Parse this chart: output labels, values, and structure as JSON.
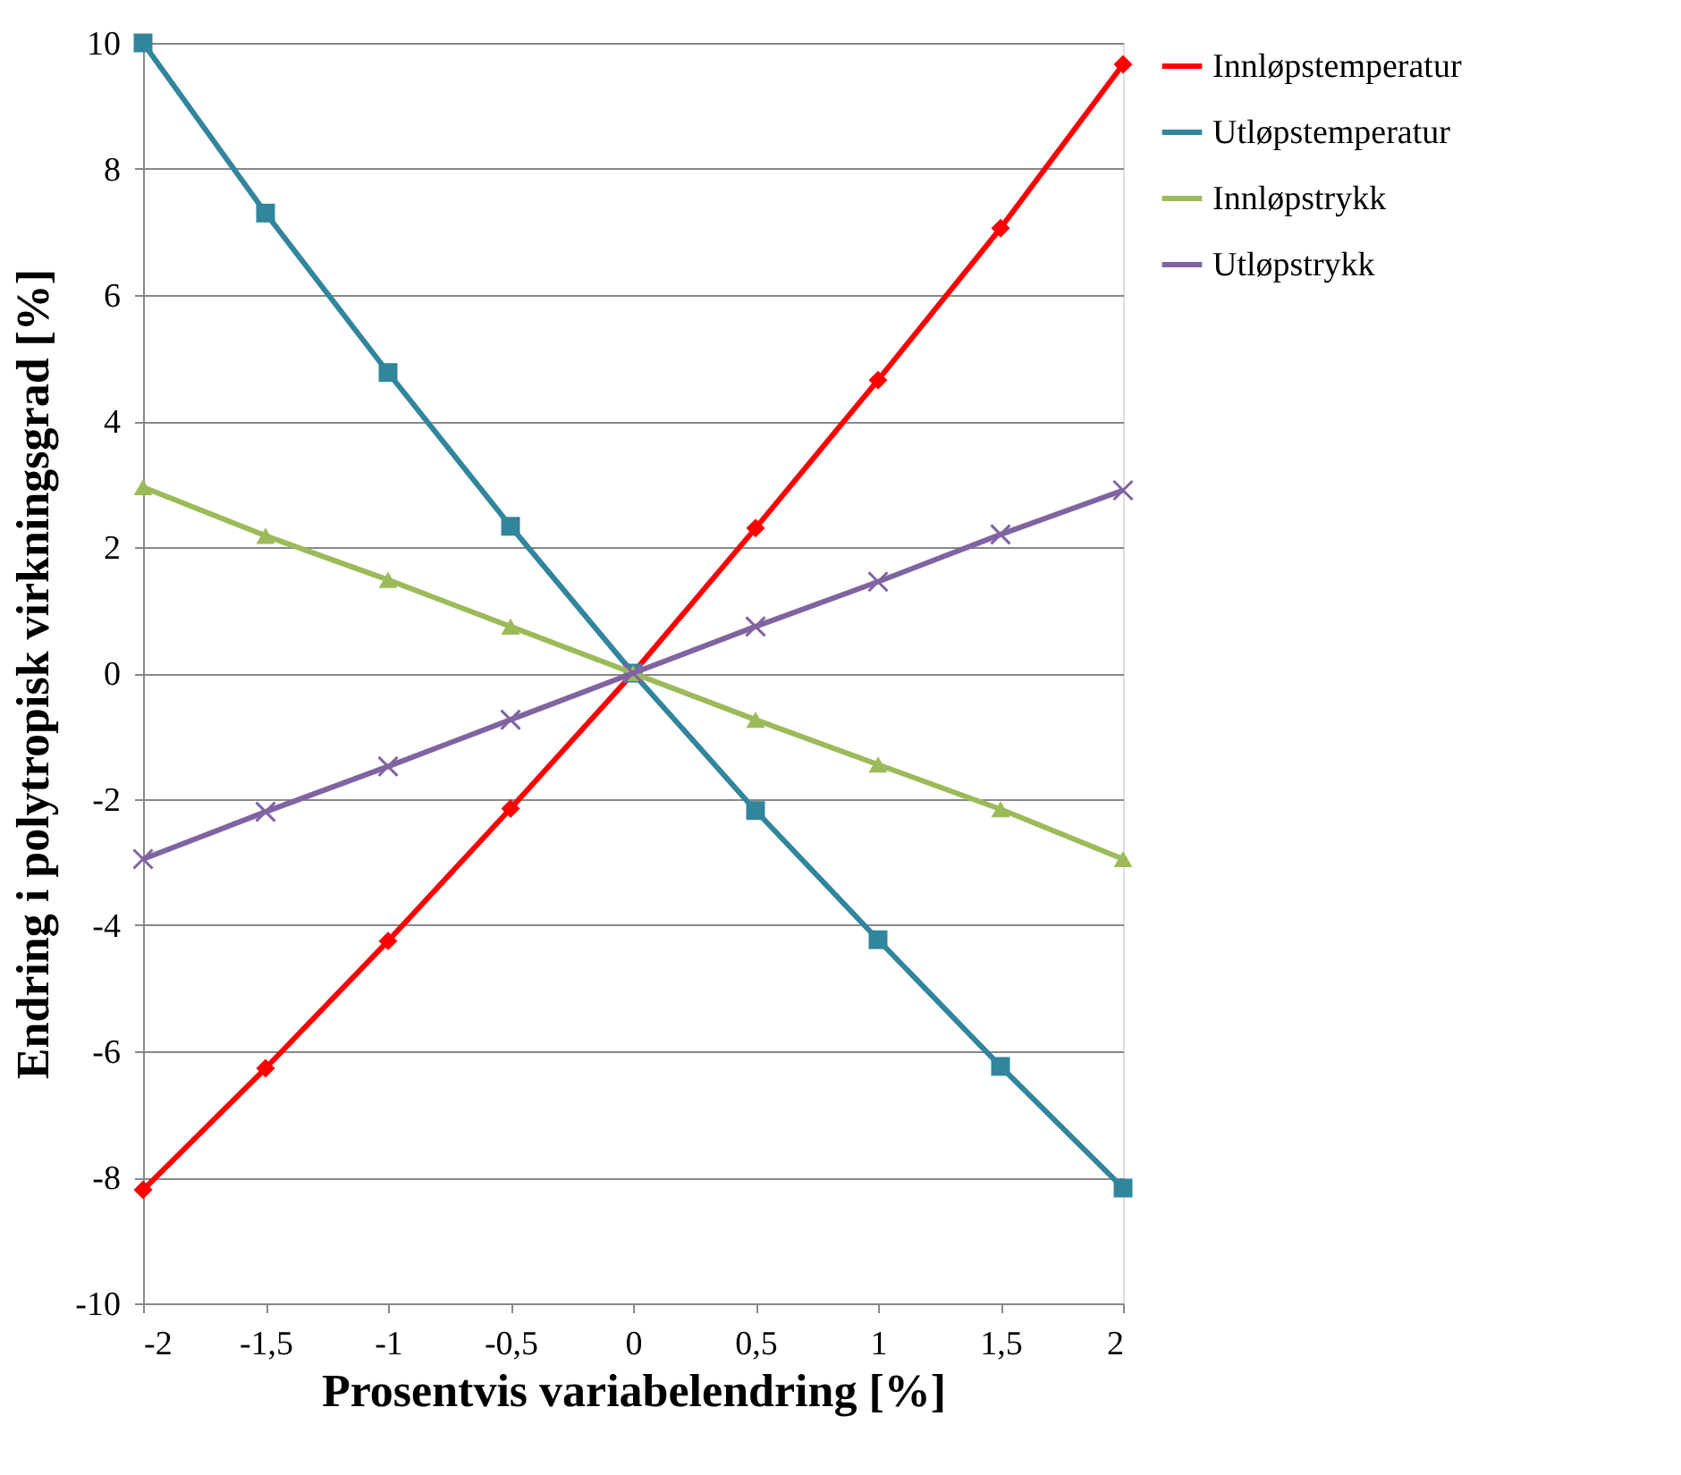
{
  "chart_data": {
    "type": "line",
    "xlabel": "Prosentvis variabelendring [%]",
    "ylabel": "Endring i polytropisk virkningsgrad [%]",
    "x": [
      -2,
      -1.5,
      -1,
      -0.5,
      0,
      0.5,
      1,
      1.5,
      2
    ],
    "series": [
      {
        "name": "Innløpstemperatur",
        "color": "#ff0000",
        "marker": "diamond",
        "values": [
          -8.2,
          -6.27,
          -4.25,
          -2.15,
          0,
          2.3,
          4.65,
          7.06,
          9.66
        ]
      },
      {
        "name": "Utløpstemperatur",
        "color": "#31859c",
        "marker": "square",
        "values": [
          10,
          7.3,
          4.77,
          2.33,
          0,
          -2.18,
          -4.23,
          -6.24,
          -8.17
        ]
      },
      {
        "name": "Innløpstrykk",
        "color": "#9bbb59",
        "marker": "triangle",
        "values": [
          2.95,
          2.18,
          1.48,
          0.74,
          0,
          -0.74,
          -1.45,
          -2.16,
          -2.95
        ]
      },
      {
        "name": "Utløpstrykk",
        "color": "#8064a2",
        "marker": "cross",
        "values": [
          -2.95,
          -2.2,
          -1.48,
          -0.74,
          0,
          0.74,
          1.45,
          2.2,
          2.9
        ]
      }
    ],
    "xlim": [
      -2,
      2
    ],
    "xticks": [
      -2,
      {
        "value": -1.5,
        "label": "-1,5"
      },
      -1,
      {
        "value": -0.5,
        "label": "-0,5"
      },
      0,
      {
        "value": 0.5,
        "label": "0,5"
      },
      1,
      {
        "value": 1.5,
        "label": "1,5"
      },
      2
    ],
    "ylim": [
      -10,
      10
    ],
    "yticks": [
      -10,
      -8,
      -6,
      -4,
      -2,
      0,
      2,
      4,
      6,
      8,
      10
    ],
    "grid": "y",
    "legend": "right",
    "line_style": "solid"
  }
}
